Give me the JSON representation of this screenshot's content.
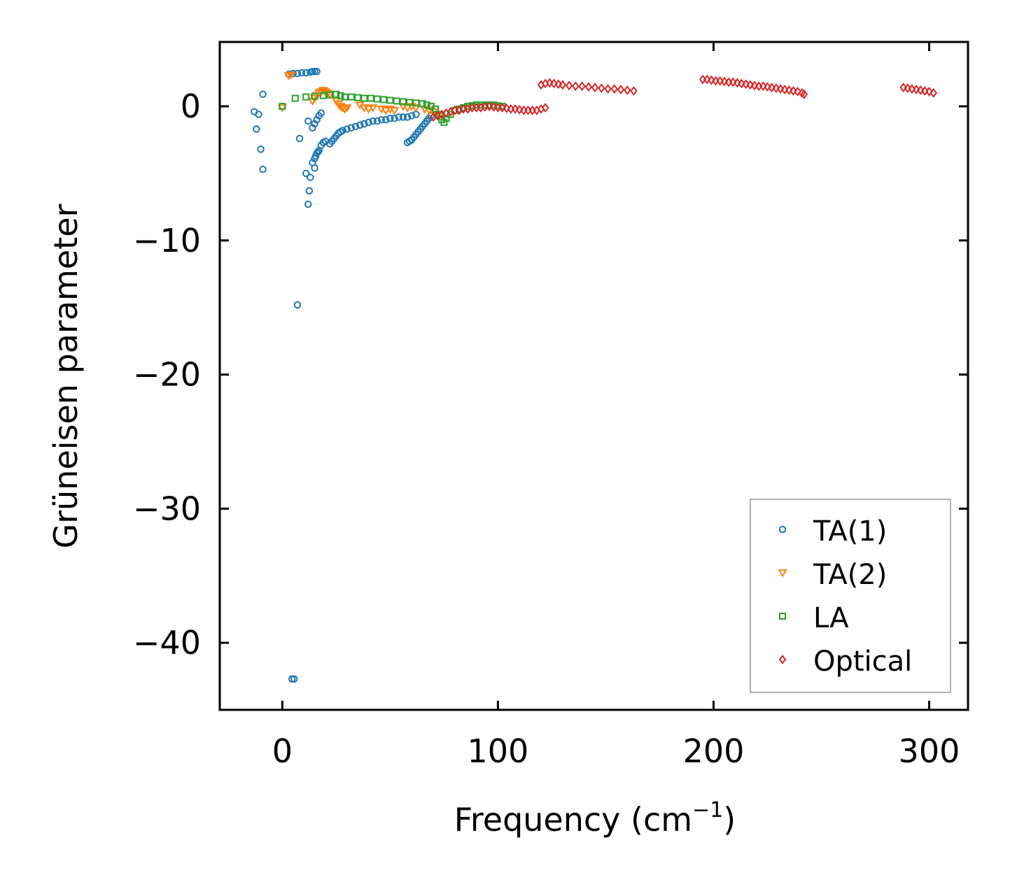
{
  "chart_data": {
    "type": "scatter",
    "title": "",
    "xlabel": "Frequency (cm",
    "xlabel_sup": "−1",
    "xlabel_suffix": ")",
    "ylabel": "Grüneisen parameter",
    "xlim": [
      -29,
      318
    ],
    "ylim": [
      -45,
      4.8
    ],
    "xticks": [
      0,
      100,
      200,
      300
    ],
    "xtick_labels": [
      "0",
      "100",
      "200",
      "300"
    ],
    "yticks": [
      0,
      -10,
      -20,
      -30,
      -40
    ],
    "ytick_labels": [
      "0",
      "−10",
      "−20",
      "−30",
      "−40"
    ],
    "grid": false,
    "legend_position": "lower-right",
    "series": [
      {
        "name": "TA(1)",
        "color": "#1f77b4",
        "marker": "circle",
        "points": [
          [
            -13,
            -0.4
          ],
          [
            -12,
            -1.7
          ],
          [
            -11,
            -0.6
          ],
          [
            -10,
            -3.2
          ],
          [
            -9,
            -4.7
          ],
          [
            -9,
            0.9
          ],
          [
            3,
            2.4
          ],
          [
            5,
            2.45
          ],
          [
            7,
            2.45
          ],
          [
            9,
            2.5
          ],
          [
            11,
            2.5
          ],
          [
            13,
            2.55
          ],
          [
            14,
            2.6
          ],
          [
            15,
            2.6
          ],
          [
            16,
            2.6
          ],
          [
            4.5,
            -42.7
          ],
          [
            5.5,
            -42.7
          ],
          [
            7,
            -14.8
          ],
          [
            8,
            -2.4
          ],
          [
            11,
            -5
          ],
          [
            12,
            -7.3
          ],
          [
            12.5,
            -6.3
          ],
          [
            12,
            -1.1
          ],
          [
            13,
            -5.3
          ],
          [
            14,
            -4.2
          ],
          [
            15,
            -4.6
          ],
          [
            14,
            -1.6
          ],
          [
            15,
            -3.9
          ],
          [
            15.5,
            -3.7
          ],
          [
            16,
            -3.5
          ],
          [
            16.5,
            -3.4
          ],
          [
            17,
            -3.3
          ],
          [
            15,
            -1.3
          ],
          [
            16,
            -1
          ],
          [
            17,
            -0.7
          ],
          [
            18,
            -0.5
          ],
          [
            18,
            -2.9
          ],
          [
            19,
            -2.7
          ],
          [
            20,
            -2.6
          ],
          [
            22,
            -2.8
          ],
          [
            23,
            -2.6
          ],
          [
            24,
            -2.4
          ],
          [
            25,
            -2.2
          ],
          [
            26,
            -2.0
          ],
          [
            27,
            -1.9
          ],
          [
            28,
            -1.8
          ],
          [
            30,
            -1.7
          ],
          [
            32,
            -1.6
          ],
          [
            34,
            -1.5
          ],
          [
            36,
            -1.4
          ],
          [
            38,
            -1.3
          ],
          [
            40,
            -1.2
          ],
          [
            42,
            -1.1
          ],
          [
            44,
            -1.1
          ],
          [
            46,
            -1.0
          ],
          [
            48,
            -1.0
          ],
          [
            50,
            -0.9
          ],
          [
            52,
            -0.9
          ],
          [
            54,
            -0.8
          ],
          [
            56,
            -0.8
          ],
          [
            58,
            -0.8
          ],
          [
            60,
            -0.7
          ],
          [
            62,
            -0.6
          ],
          [
            58,
            -2.7
          ],
          [
            59,
            -2.6
          ],
          [
            60,
            -2.5
          ],
          [
            61,
            -2.3
          ],
          [
            62,
            -2.1
          ],
          [
            63,
            -1.9
          ],
          [
            64,
            -1.7
          ],
          [
            65,
            -1.5
          ],
          [
            66,
            -1.3
          ],
          [
            67,
            -1.1
          ],
          [
            68,
            -0.9
          ],
          [
            69,
            -0.7
          ]
        ]
      },
      {
        "name": "TA(2)",
        "color": "#ff7f0e",
        "marker": "triangle-down",
        "points": [
          [
            0,
            -0.1
          ],
          [
            3,
            2.3
          ],
          [
            4,
            2.35
          ],
          [
            14,
            0.4
          ],
          [
            15,
            0.6
          ],
          [
            16,
            0.8
          ],
          [
            17,
            1.0
          ],
          [
            18,
            1.1
          ],
          [
            19,
            1.2
          ],
          [
            20,
            1.1
          ],
          [
            21,
            1.0
          ],
          [
            22,
            0.9
          ],
          [
            25,
            0.4
          ],
          [
            26,
            0.2
          ],
          [
            27,
            0.0
          ],
          [
            28,
            -0.1
          ],
          [
            29,
            -0.2
          ],
          [
            30,
            -0.1
          ],
          [
            36,
            0.1
          ],
          [
            38,
            -0.1
          ],
          [
            40,
            -0.2
          ],
          [
            42,
            -0.1
          ],
          [
            46,
            -0.2
          ],
          [
            48,
            -0.3
          ],
          [
            50,
            -0.2
          ],
          [
            52,
            -0.3
          ],
          [
            56,
            0.0
          ],
          [
            58,
            -0.1
          ],
          [
            60,
            0.0
          ],
          [
            62,
            -0.1
          ],
          [
            66,
            -0.2
          ],
          [
            68,
            -0.3
          ],
          [
            70,
            -0.4
          ],
          [
            72,
            -0.6
          ],
          [
            73,
            -0.7
          ]
        ]
      },
      {
        "name": "LA",
        "color": "#2ca02c",
        "marker": "square",
        "points": [
          [
            0,
            0.0
          ],
          [
            6,
            0.6
          ],
          [
            11,
            0.7
          ],
          [
            15,
            0.75
          ],
          [
            19,
            0.8
          ],
          [
            22,
            0.85
          ],
          [
            25,
            0.9
          ],
          [
            27,
            0.8
          ],
          [
            29,
            0.7
          ],
          [
            32,
            0.7
          ],
          [
            35,
            0.65
          ],
          [
            38,
            0.6
          ],
          [
            41,
            0.6
          ],
          [
            44,
            0.55
          ],
          [
            47,
            0.5
          ],
          [
            50,
            0.45
          ],
          [
            53,
            0.4
          ],
          [
            56,
            0.35
          ],
          [
            59,
            0.3
          ],
          [
            62,
            0.25
          ],
          [
            65,
            0.2
          ],
          [
            67,
            0.1
          ],
          [
            69,
            0.0
          ],
          [
            71,
            -0.2
          ],
          [
            73,
            -0.6
          ],
          [
            74,
            -1.0
          ],
          [
            75,
            -1.2
          ],
          [
            76,
            -0.9
          ],
          [
            78,
            -0.6
          ],
          [
            80,
            -0.3
          ],
          [
            82,
            -0.2
          ],
          [
            84,
            -0.1
          ],
          [
            86,
            0.0
          ],
          [
            88,
            0.05
          ],
          [
            90,
            0.1
          ],
          [
            92,
            0.1
          ],
          [
            94,
            0.1
          ],
          [
            96,
            0.1
          ],
          [
            98,
            0.1
          ],
          [
            100,
            0.05
          ],
          [
            102,
            0.0
          ]
        ]
      },
      {
        "name": "Optical",
        "color": "#d62728",
        "marker": "diamond",
        "points": [
          [
            70,
            -0.8
          ],
          [
            72,
            -0.7
          ],
          [
            74,
            -0.6
          ],
          [
            76,
            -0.5
          ],
          [
            78,
            -0.4
          ],
          [
            80,
            -0.3
          ],
          [
            82,
            -0.3
          ],
          [
            84,
            -0.2
          ],
          [
            86,
            -0.2
          ],
          [
            88,
            -0.1
          ],
          [
            90,
            -0.1
          ],
          [
            92,
            -0.1
          ],
          [
            94,
            -0.05
          ],
          [
            96,
            0.0
          ],
          [
            98,
            -0.05
          ],
          [
            100,
            -0.1
          ],
          [
            102,
            -0.1
          ],
          [
            104,
            -0.15
          ],
          [
            106,
            -0.2
          ],
          [
            108,
            -0.2
          ],
          [
            110,
            -0.25
          ],
          [
            112,
            -0.3
          ],
          [
            114,
            -0.3
          ],
          [
            116,
            -0.3
          ],
          [
            118,
            -0.3
          ],
          [
            120,
            -0.2
          ],
          [
            122,
            -0.1
          ],
          [
            120,
            1.6
          ],
          [
            122,
            1.7
          ],
          [
            124,
            1.75
          ],
          [
            126,
            1.7
          ],
          [
            128,
            1.65
          ],
          [
            130,
            1.6
          ],
          [
            133,
            1.55
          ],
          [
            136,
            1.5
          ],
          [
            139,
            1.5
          ],
          [
            142,
            1.45
          ],
          [
            145,
            1.4
          ],
          [
            148,
            1.35
          ],
          [
            151,
            1.3
          ],
          [
            154,
            1.3
          ],
          [
            157,
            1.25
          ],
          [
            160,
            1.2
          ],
          [
            163,
            1.15
          ],
          [
            195,
            2.0
          ],
          [
            197,
            2.0
          ],
          [
            199,
            1.95
          ],
          [
            201,
            1.9
          ],
          [
            203,
            1.9
          ],
          [
            205,
            1.85
          ],
          [
            207,
            1.8
          ],
          [
            209,
            1.8
          ],
          [
            211,
            1.75
          ],
          [
            213,
            1.7
          ],
          [
            215,
            1.65
          ],
          [
            217,
            1.6
          ],
          [
            219,
            1.55
          ],
          [
            221,
            1.5
          ],
          [
            223,
            1.5
          ],
          [
            225,
            1.45
          ],
          [
            227,
            1.4
          ],
          [
            229,
            1.35
          ],
          [
            231,
            1.3
          ],
          [
            233,
            1.25
          ],
          [
            235,
            1.2
          ],
          [
            237,
            1.15
          ],
          [
            239,
            1.1
          ],
          [
            241,
            1.0
          ],
          [
            242,
            0.9
          ],
          [
            288,
            1.4
          ],
          [
            290,
            1.35
          ],
          [
            292,
            1.3
          ],
          [
            294,
            1.25
          ],
          [
            296,
            1.2
          ],
          [
            298,
            1.15
          ],
          [
            300,
            1.1
          ],
          [
            302,
            1.0
          ]
        ]
      }
    ]
  }
}
